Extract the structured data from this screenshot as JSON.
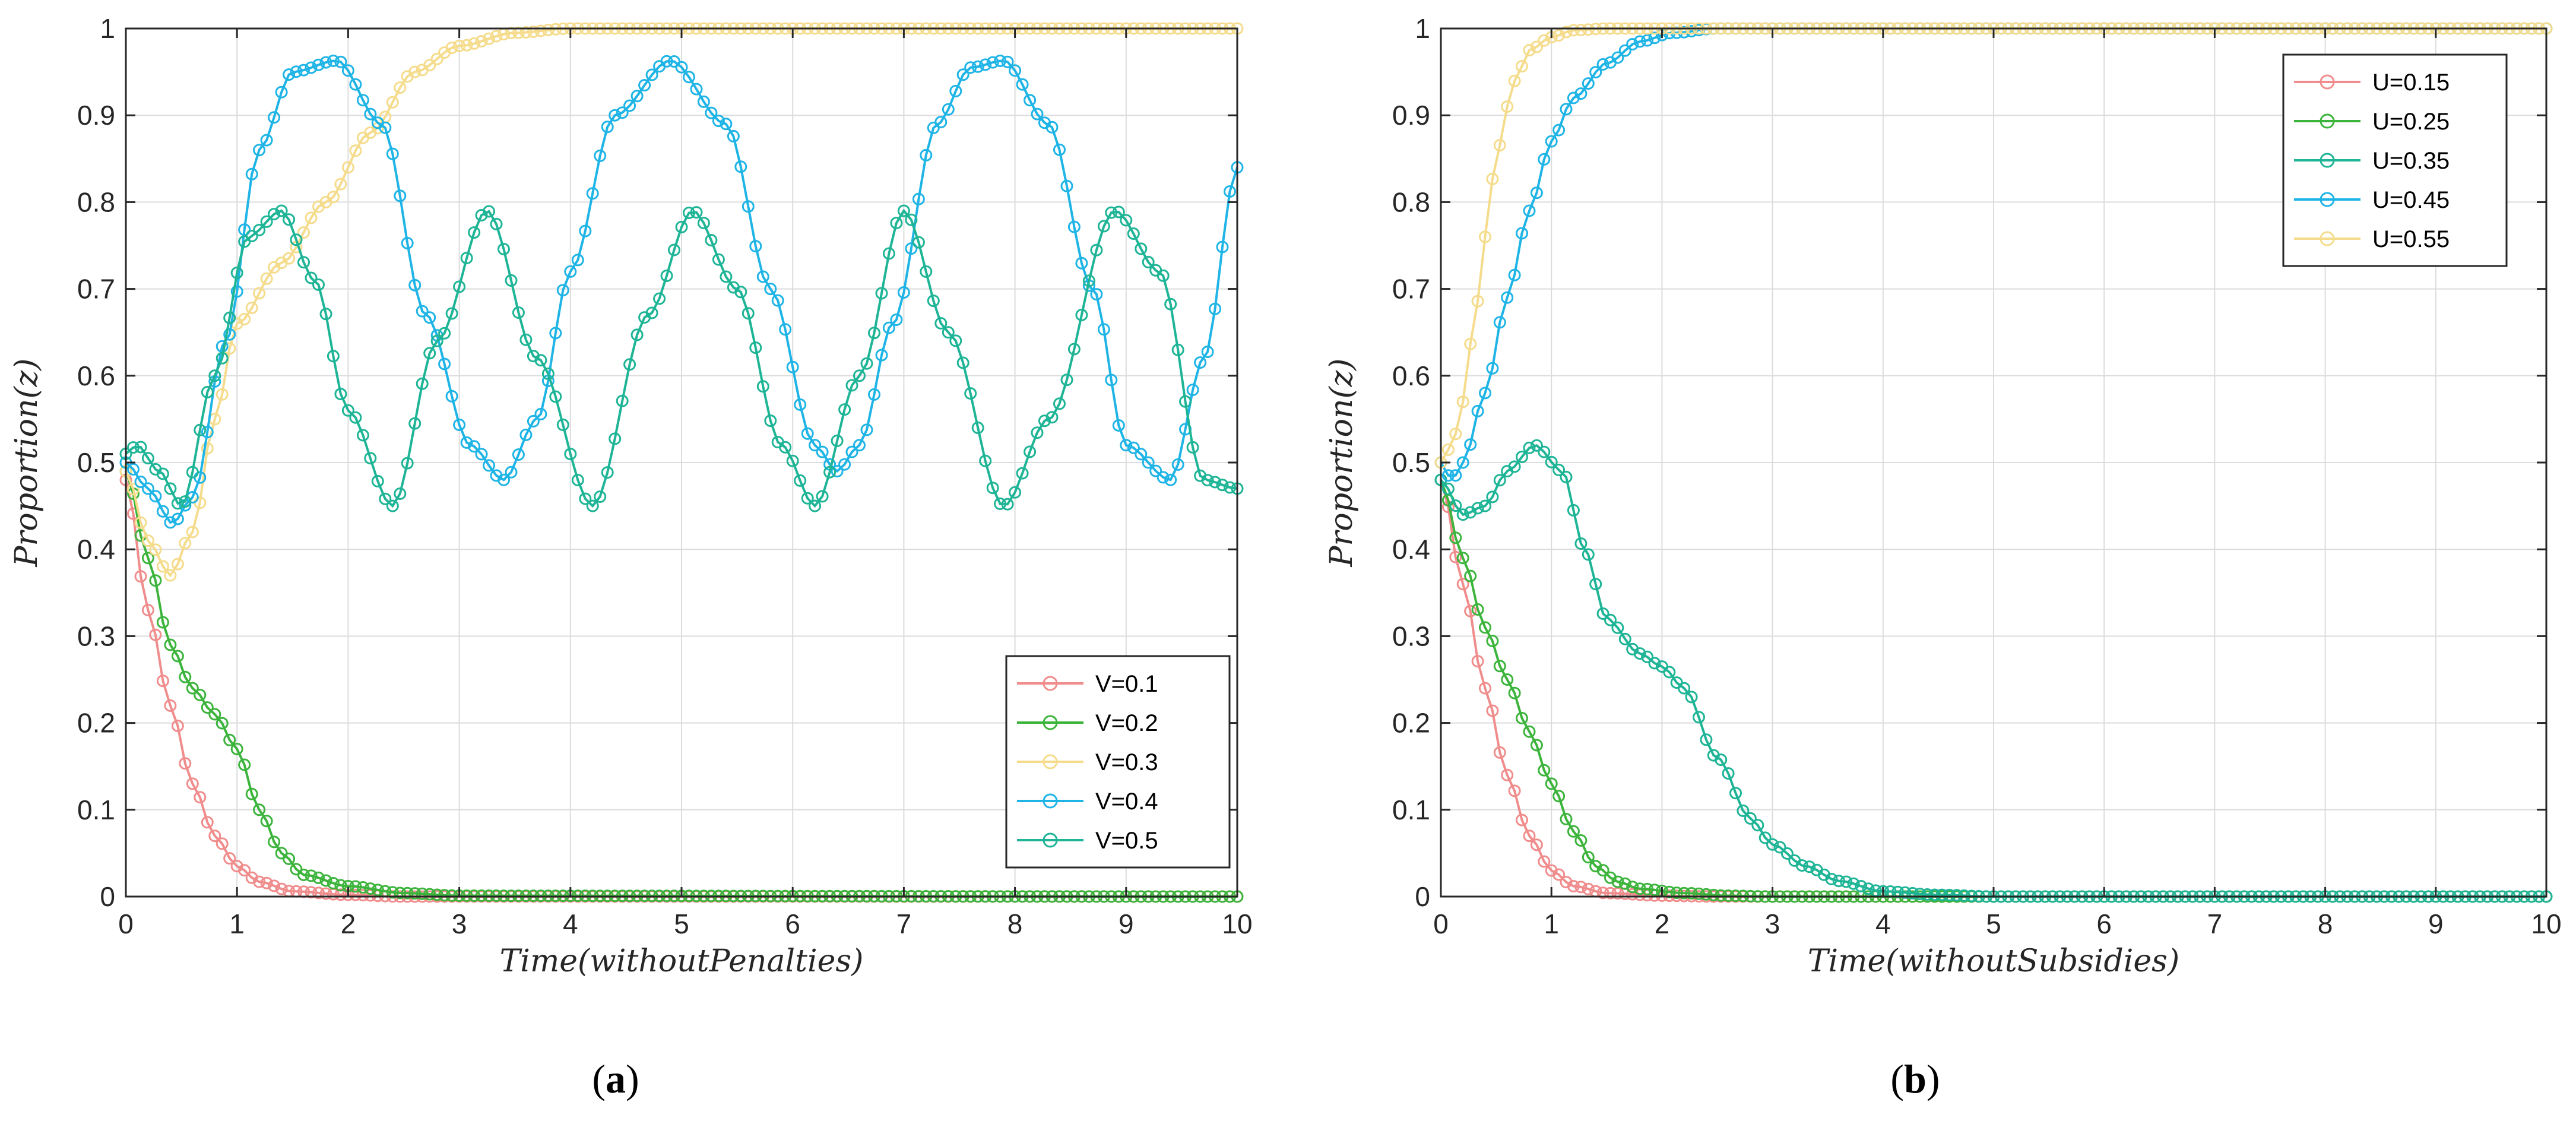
{
  "chart_data": [
    {
      "type": "line",
      "panel": "a",
      "caption_open": "(",
      "caption_letter": "a",
      "caption_close": ")",
      "xlabel": "Time(withoutPenalties)",
      "ylabel": "Proportion(z)",
      "xlim": [
        0,
        10
      ],
      "ylim": [
        0,
        1
      ],
      "xticks": [
        0,
        1,
        2,
        3,
        4,
        5,
        6,
        7,
        8,
        9,
        10
      ],
      "yticks": [
        0,
        0.1,
        0.2,
        0.3,
        0.4,
        0.5,
        0.6,
        0.7,
        0.8,
        0.9,
        1
      ],
      "grid": true,
      "legend_position": "bottom-right",
      "series": [
        {
          "name": "V=0.1",
          "color": "#f08c8c",
          "x": [
            0,
            0.2,
            0.4,
            0.6,
            0.8,
            1.0,
            1.2,
            1.5,
            2.0,
            2.5,
            3.0,
            10
          ],
          "y": [
            0.48,
            0.33,
            0.22,
            0.13,
            0.07,
            0.035,
            0.017,
            0.006,
            0.002,
            0.0,
            0.0,
            0.0
          ]
        },
        {
          "name": "V=0.2",
          "color": "#3cb43c",
          "x": [
            0,
            0.2,
            0.4,
            0.6,
            0.8,
            1.0,
            1.2,
            1.4,
            1.6,
            2.0,
            2.5,
            3.0,
            10
          ],
          "y": [
            0.49,
            0.39,
            0.29,
            0.24,
            0.21,
            0.17,
            0.1,
            0.05,
            0.025,
            0.012,
            0.004,
            0.001,
            0.0
          ]
        },
        {
          "name": "V=0.3",
          "color": "#f5dc8c",
          "x": [
            0,
            0.2,
            0.4,
            0.6,
            0.8,
            1.0,
            1.4,
            1.8,
            2.2,
            2.6,
            3.0,
            3.5,
            4.0,
            10
          ],
          "y": [
            0.49,
            0.41,
            0.37,
            0.42,
            0.55,
            0.66,
            0.73,
            0.8,
            0.88,
            0.95,
            0.98,
            0.995,
            1.0,
            1.0
          ]
        },
        {
          "name": "V=0.4",
          "color": "#1eb4e6",
          "x": [
            0,
            0.2,
            0.42,
            0.6,
            0.9,
            1.2,
            1.5,
            1.9,
            2.3,
            2.7,
            3.1,
            3.4,
            3.7,
            4.0,
            4.4,
            4.9,
            5.4,
            5.8,
            6.2,
            6.4,
            6.6,
            6.9,
            7.3,
            7.6,
            7.9,
            8.3,
            8.7,
            9.0,
            9.4,
            9.7,
            10.0
          ],
          "y": [
            0.5,
            0.47,
            0.43,
            0.46,
            0.64,
            0.86,
            0.95,
            0.963,
            0.89,
            0.67,
            0.52,
            0.48,
            0.55,
            0.72,
            0.9,
            0.963,
            0.89,
            0.7,
            0.52,
            0.49,
            0.52,
            0.66,
            0.89,
            0.955,
            0.963,
            0.89,
            0.7,
            0.52,
            0.48,
            0.62,
            0.84
          ]
        },
        {
          "name": "V=0.5",
          "color": "#1eb496",
          "x": [
            0,
            0.1,
            0.3,
            0.5,
            0.8,
            1.1,
            1.4,
            1.7,
            2.0,
            2.4,
            2.8,
            3.25,
            3.7,
            4.2,
            4.7,
            5.1,
            5.5,
            5.9,
            6.2,
            6.6,
            7.0,
            7.4,
            7.9,
            8.3,
            8.9,
            9.3,
            9.7,
            10.0
          ],
          "y": [
            0.51,
            0.52,
            0.49,
            0.45,
            0.6,
            0.76,
            0.79,
            0.71,
            0.56,
            0.45,
            0.64,
            0.79,
            0.62,
            0.45,
            0.67,
            0.79,
            0.7,
            0.52,
            0.45,
            0.6,
            0.79,
            0.65,
            0.45,
            0.55,
            0.79,
            0.72,
            0.48,
            0.47
          ]
        }
      ]
    },
    {
      "type": "line",
      "panel": "b",
      "caption_open": "(",
      "caption_letter": "b",
      "caption_close": ")",
      "xlabel": "Time(withoutSubsidies)",
      "ylabel": "Proportion(z)",
      "xlim": [
        0,
        10
      ],
      "ylim": [
        0,
        1
      ],
      "xticks": [
        0,
        1,
        2,
        3,
        4,
        5,
        6,
        7,
        8,
        9,
        10
      ],
      "yticks": [
        0,
        0.1,
        0.2,
        0.3,
        0.4,
        0.5,
        0.6,
        0.7,
        0.8,
        0.9,
        1
      ],
      "grid": true,
      "legend_position": "top-right",
      "series": [
        {
          "name": "U=0.15",
          "color": "#f08c8c",
          "x": [
            0,
            0.2,
            0.4,
            0.6,
            0.8,
            1.0,
            1.2,
            1.5,
            2.0,
            2.5,
            10
          ],
          "y": [
            0.48,
            0.36,
            0.24,
            0.14,
            0.07,
            0.03,
            0.012,
            0.004,
            0.001,
            0.0,
            0.0
          ]
        },
        {
          "name": "U=0.25",
          "color": "#3cb43c",
          "x": [
            0,
            0.2,
            0.4,
            0.6,
            0.8,
            1.0,
            1.2,
            1.4,
            1.6,
            1.8,
            2.2,
            2.6,
            3.0,
            10
          ],
          "y": [
            0.48,
            0.39,
            0.31,
            0.25,
            0.19,
            0.13,
            0.075,
            0.035,
            0.017,
            0.009,
            0.004,
            0.001,
            0.0,
            0.0
          ]
        },
        {
          "name": "U=0.35",
          "color": "#1eb496",
          "x": [
            0,
            0.2,
            0.4,
            0.6,
            0.85,
            1.1,
            1.3,
            1.5,
            1.8,
            2.0,
            2.2,
            2.5,
            2.8,
            3.0,
            3.3,
            3.6,
            4.0,
            4.5,
            5.0,
            10
          ],
          "y": [
            0.48,
            0.44,
            0.45,
            0.49,
            0.52,
            0.49,
            0.4,
            0.32,
            0.28,
            0.265,
            0.24,
            0.16,
            0.09,
            0.06,
            0.035,
            0.018,
            0.006,
            0.002,
            0.0,
            0.0
          ]
        },
        {
          "name": "U=0.45",
          "color": "#1eb4e6",
          "x": [
            0,
            0.1,
            0.2,
            0.4,
            0.6,
            0.8,
            1.0,
            1.2,
            1.5,
            1.8,
            2.1,
            2.5,
            3.0,
            10
          ],
          "y": [
            0.5,
            0.48,
            0.5,
            0.58,
            0.69,
            0.79,
            0.87,
            0.92,
            0.96,
            0.985,
            0.995,
            1.0,
            1.0,
            1.0
          ]
        },
        {
          "name": "U=0.55",
          "color": "#f5dc8c",
          "x": [
            0,
            0.1,
            0.2,
            0.3,
            0.4,
            0.5,
            0.6,
            0.7,
            0.8,
            1.0,
            1.2,
            1.5,
            2.0,
            10
          ],
          "y": [
            0.5,
            0.52,
            0.57,
            0.66,
            0.76,
            0.85,
            0.91,
            0.95,
            0.975,
            0.99,
            0.998,
            1.0,
            1.0,
            1.0
          ]
        }
      ]
    }
  ]
}
